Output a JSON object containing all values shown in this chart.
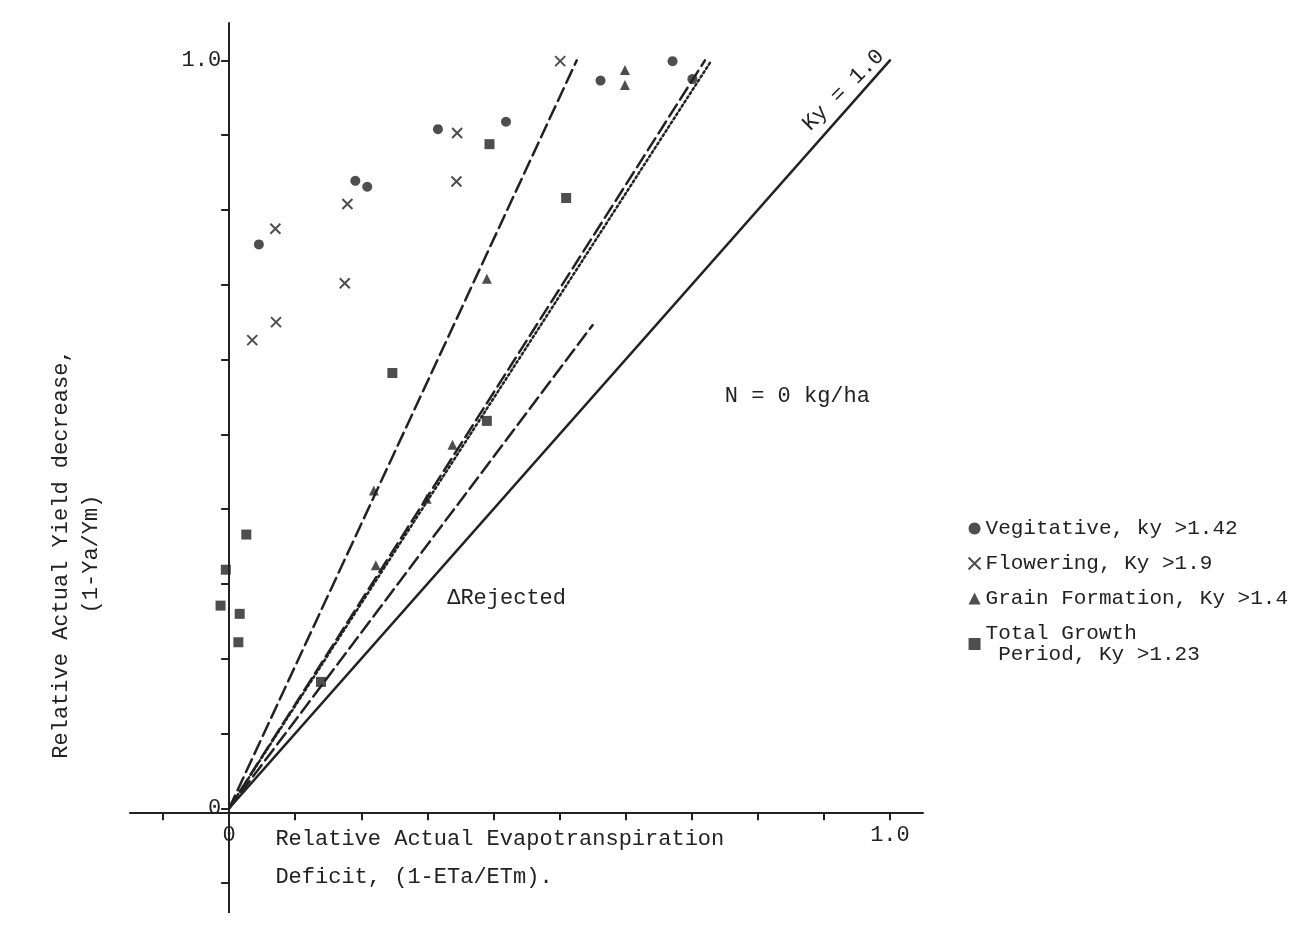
{
  "chart_data": {
    "type": "scatter",
    "xlabel": "Relative Actual Evapotranspiration\nDeficit, (1-ETa/ETm).",
    "ylabel": "Relative Actual Yield decrease,\n(1-Ya/Ym)",
    "xlim": [
      -0.15,
      1.05
    ],
    "ylim": [
      -0.14,
      1.05
    ],
    "xticks": [
      {
        "value": -0.1,
        "label": null
      },
      {
        "value": 0,
        "label": "0"
      },
      {
        "value": 0.1,
        "label": null
      },
      {
        "value": 0.2,
        "label": null
      },
      {
        "value": 0.3,
        "label": null
      },
      {
        "value": 0.4,
        "label": null
      },
      {
        "value": 0.5,
        "label": null
      },
      {
        "value": 0.6,
        "label": null
      },
      {
        "value": 0.7,
        "label": null
      },
      {
        "value": 0.8,
        "label": null
      },
      {
        "value": 0.9,
        "label": null
      },
      {
        "value": 1.0,
        "label": "1.0"
      }
    ],
    "yticks": [
      {
        "value": -0.1,
        "label": null
      },
      {
        "value": 0,
        "label": "0"
      },
      {
        "value": 0.1,
        "label": null
      },
      {
        "value": 0.2,
        "label": null
      },
      {
        "value": 0.3,
        "label": null
      },
      {
        "value": 0.4,
        "label": null
      },
      {
        "value": 0.5,
        "label": null
      },
      {
        "value": 0.6,
        "label": null
      },
      {
        "value": 0.7,
        "label": null
      },
      {
        "value": 0.8,
        "label": null
      },
      {
        "value": 0.9,
        "label": null
      },
      {
        "value": 1.0,
        "label": "1.0"
      }
    ],
    "legend": "right",
    "annotations": [
      "Ky = 1.0",
      "N = 0 kg/ha",
      "ΔRejected"
    ],
    "series": [
      {
        "name": "Vegitative, ky >1.42",
        "color": "#222222",
        "marker": "circle",
        "x": [
          0.045,
          0.191,
          0.209,
          0.316,
          0.419,
          0.562,
          0.671,
          0.701
        ],
        "values": [
          0.754,
          0.839,
          0.831,
          0.908,
          0.918,
          0.973,
          0.999,
          0.975
        ]
      },
      {
        "name": "Flowering, Ky >1.9",
        "color": "#222222",
        "marker": "cross",
        "x": [
          0.035,
          0.071,
          0.07,
          0.179,
          0.175,
          0.345,
          0.344,
          0.501
        ],
        "values": [
          0.626,
          0.65,
          0.775,
          0.808,
          0.702,
          0.903,
          0.838,
          0.999
        ]
      },
      {
        "name": "Grain Formation, Ky >1.4",
        "color": "#222222",
        "marker": "triangle",
        "x": [
          0.39,
          0.219,
          0.222,
          0.338,
          0.299,
          0.599,
          0.599
        ],
        "values": [
          0.708,
          0.425,
          0.325,
          0.486,
          0.414,
          0.987,
          0.967
        ]
      },
      {
        "name": "Total Growth\n Period, Ky >1.23",
        "color": "#222222",
        "marker": "square",
        "x": [
          0.394,
          0.51,
          0.247,
          0.39,
          0.026,
          -0.005,
          -0.013,
          0.016,
          0.014,
          0.139
        ],
        "values": [
          0.888,
          0.816,
          0.582,
          0.518,
          0.366,
          0.319,
          0.271,
          0.26,
          0.222,
          0.169
        ]
      },
      {
        "type": "line",
        "color": "#222222",
        "line_style": "dotted",
        "marker": "none",
        "x": [
          0,
          0.73
        ],
        "values": [
          0,
          1.0
        ]
      },
      {
        "type": "line",
        "color": "#222222",
        "line_style": "dashed",
        "marker": "none",
        "x": [
          0,
          0.526
        ],
        "values": [
          0,
          1.0
        ]
      },
      {
        "type": "line",
        "color": "#222222",
        "line_style": "dashed",
        "marker": "none",
        "x": [
          0,
          0.72
        ],
        "values": [
          0,
          1.0
        ]
      },
      {
        "type": "line",
        "color": "#222222",
        "line_style": "dashed",
        "marker": "none",
        "x": [
          0,
          0.55
        ],
        "values": [
          0,
          0.646
        ]
      },
      {
        "type": "line",
        "color": "#222222",
        "line_style": "solid",
        "marker": "none",
        "x": [
          0,
          1.0
        ],
        "values": [
          0,
          1.0
        ]
      }
    ]
  }
}
